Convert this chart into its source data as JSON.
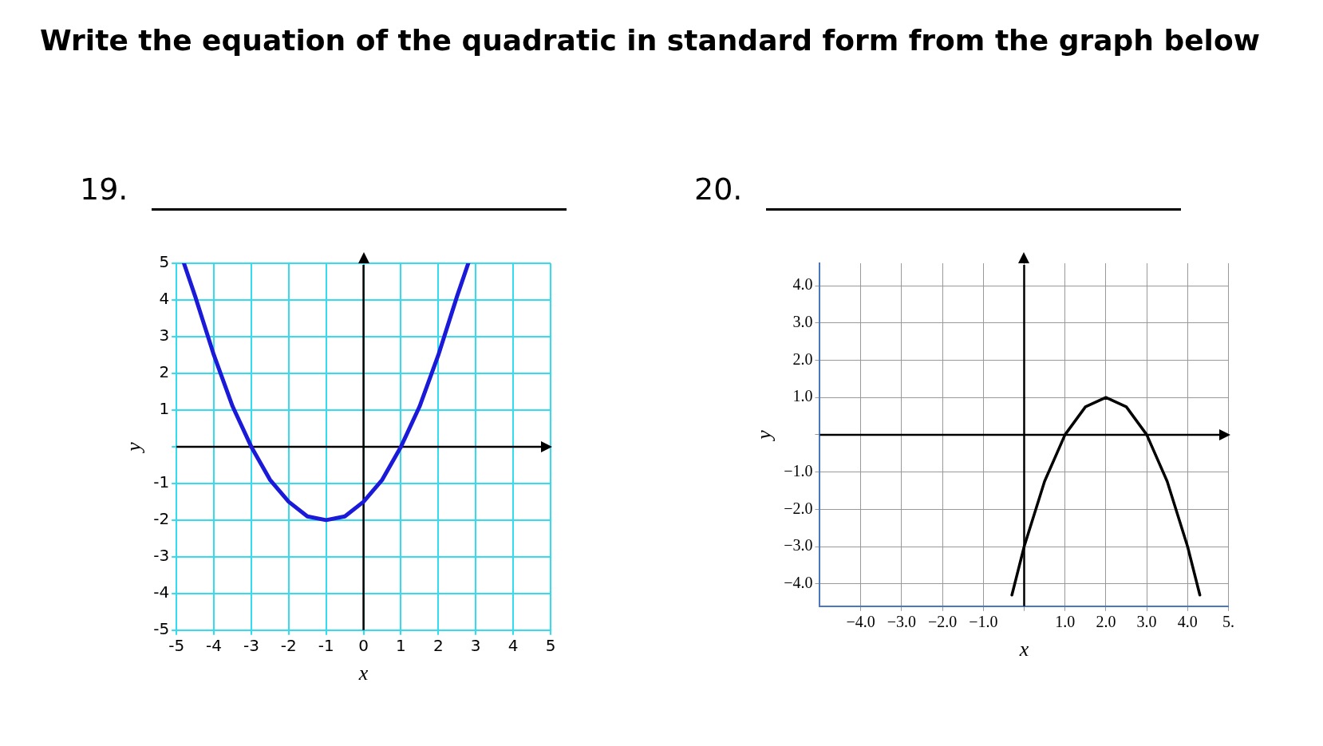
{
  "chart_data": [
    {
      "type": "line",
      "title": "Write the equation of the quadratic in standard form from the graph below",
      "subtitle": "19.",
      "xlabel": "x",
      "ylabel": "y",
      "x": [
        -4.8,
        -4.5,
        -4,
        -3.5,
        -3,
        -2.5,
        -2,
        -1.5,
        -1,
        -0.5,
        0,
        0.5,
        1,
        1.5,
        2,
        2.5,
        2.8
      ],
      "series": [
        {
          "color": "#1a1ad8",
          "values": [
            5,
            4.1,
            2.5,
            1.1,
            0,
            -0.9,
            -1.5,
            -1.9,
            -2,
            -1.9,
            -1.5,
            -0.9,
            0,
            1.1,
            2.5,
            4.1,
            5
          ]
        }
      ],
      "xlim": [
        -5,
        5
      ],
      "ylim": [
        -5,
        5
      ],
      "xticks": [
        -5,
        -4,
        -3,
        -2,
        -1,
        0,
        1,
        2,
        3,
        4,
        5
      ],
      "yticks": [
        -5,
        -4,
        -3,
        -2,
        -1,
        {
          "value": 0,
          "label": null
        },
        1,
        2,
        3,
        4,
        5
      ],
      "grid": true,
      "legend": false,
      "marker": "none",
      "line_style": "solid"
    },
    {
      "type": "line",
      "subtitle": "20.",
      "xlabel": "x",
      "ylabel": "y",
      "x": [
        -0.3,
        0,
        0.5,
        1,
        1.5,
        2,
        2.5,
        3,
        3.5,
        4,
        4.3
      ],
      "series": [
        {
          "color": "#000000",
          "values": [
            -4.3,
            -3,
            -1.25,
            0,
            0.75,
            1,
            0.75,
            0,
            -1.25,
            -3,
            -4.3
          ]
        }
      ],
      "xlim": [
        -5,
        5
      ],
      "ylim": [
        -4.6,
        4.6
      ],
      "xticks": [
        {
          "value": -4,
          "label": "−4.0"
        },
        {
          "value": -3,
          "label": "−3.0"
        },
        {
          "value": -2,
          "label": "−2.0"
        },
        {
          "value": -1,
          "label": "−1.0"
        },
        {
          "value": 0,
          "label": null
        },
        {
          "value": 1,
          "label": "1.0"
        },
        {
          "value": 2,
          "label": "2.0"
        },
        {
          "value": 3,
          "label": "3.0"
        },
        {
          "value": 4,
          "label": "4.0"
        },
        {
          "value": 5,
          "label": "5."
        }
      ],
      "yticks": [
        {
          "value": -4,
          "label": "−4.0"
        },
        {
          "value": -3,
          "label": "−3.0"
        },
        {
          "value": -2,
          "label": "−2.0"
        },
        {
          "value": -1,
          "label": "−1.0"
        },
        {
          "value": 0,
          "label": null
        },
        {
          "value": 1,
          "label": "1.0"
        },
        {
          "value": 2,
          "label": "2.0"
        },
        {
          "value": 3,
          "label": "3.0"
        },
        {
          "value": 4,
          "label": "4.0"
        }
      ],
      "grid": true,
      "legend": false,
      "marker": "none",
      "line_style": "solid"
    }
  ]
}
